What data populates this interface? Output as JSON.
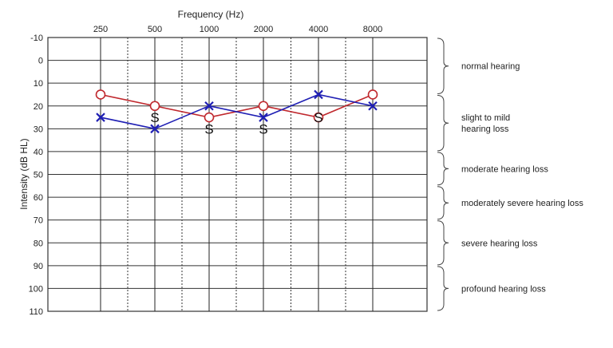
{
  "chart_data": {
    "type": "line",
    "title": "",
    "xlabel": "Frequency (Hz)",
    "ylabel": "Intensity (dB HL)",
    "x_categories": [
      "250",
      "500",
      "1000",
      "2000",
      "4000",
      "8000"
    ],
    "y_ticks": [
      -10,
      0,
      10,
      20,
      30,
      40,
      50,
      60,
      70,
      80,
      90,
      100,
      110
    ],
    "ylim": [
      -10,
      110
    ],
    "y_inverted": true,
    "grid": true,
    "series": [
      {
        "marker": "O",
        "color": "#c0282d",
        "connected": true,
        "values": [
          15,
          20,
          25,
          20,
          25,
          15
        ]
      },
      {
        "marker": "X",
        "color": "#1f1fb4",
        "connected": true,
        "values": [
          25,
          30,
          20,
          25,
          15,
          20
        ]
      },
      {
        "marker": "S",
        "color": "#111111",
        "connected": false,
        "values": [
          null,
          25,
          30,
          30,
          25,
          null
        ]
      }
    ],
    "ranges": [
      {
        "label": "normal hearing",
        "from": -10,
        "to": 15
      },
      {
        "label": "slight to mild hearing loss",
        "lines": [
          "slight to mild",
          "hearing loss"
        ],
        "from": 15,
        "to": 40
      },
      {
        "label": "moderate hearing loss",
        "from": 40,
        "to": 55
      },
      {
        "label": "moderately severe hearing loss",
        "from": 55,
        "to": 70
      },
      {
        "label": "severe hearing loss",
        "from": 70,
        "to": 90
      },
      {
        "label": "profound hearing loss",
        "from": 90,
        "to": 110
      }
    ]
  }
}
